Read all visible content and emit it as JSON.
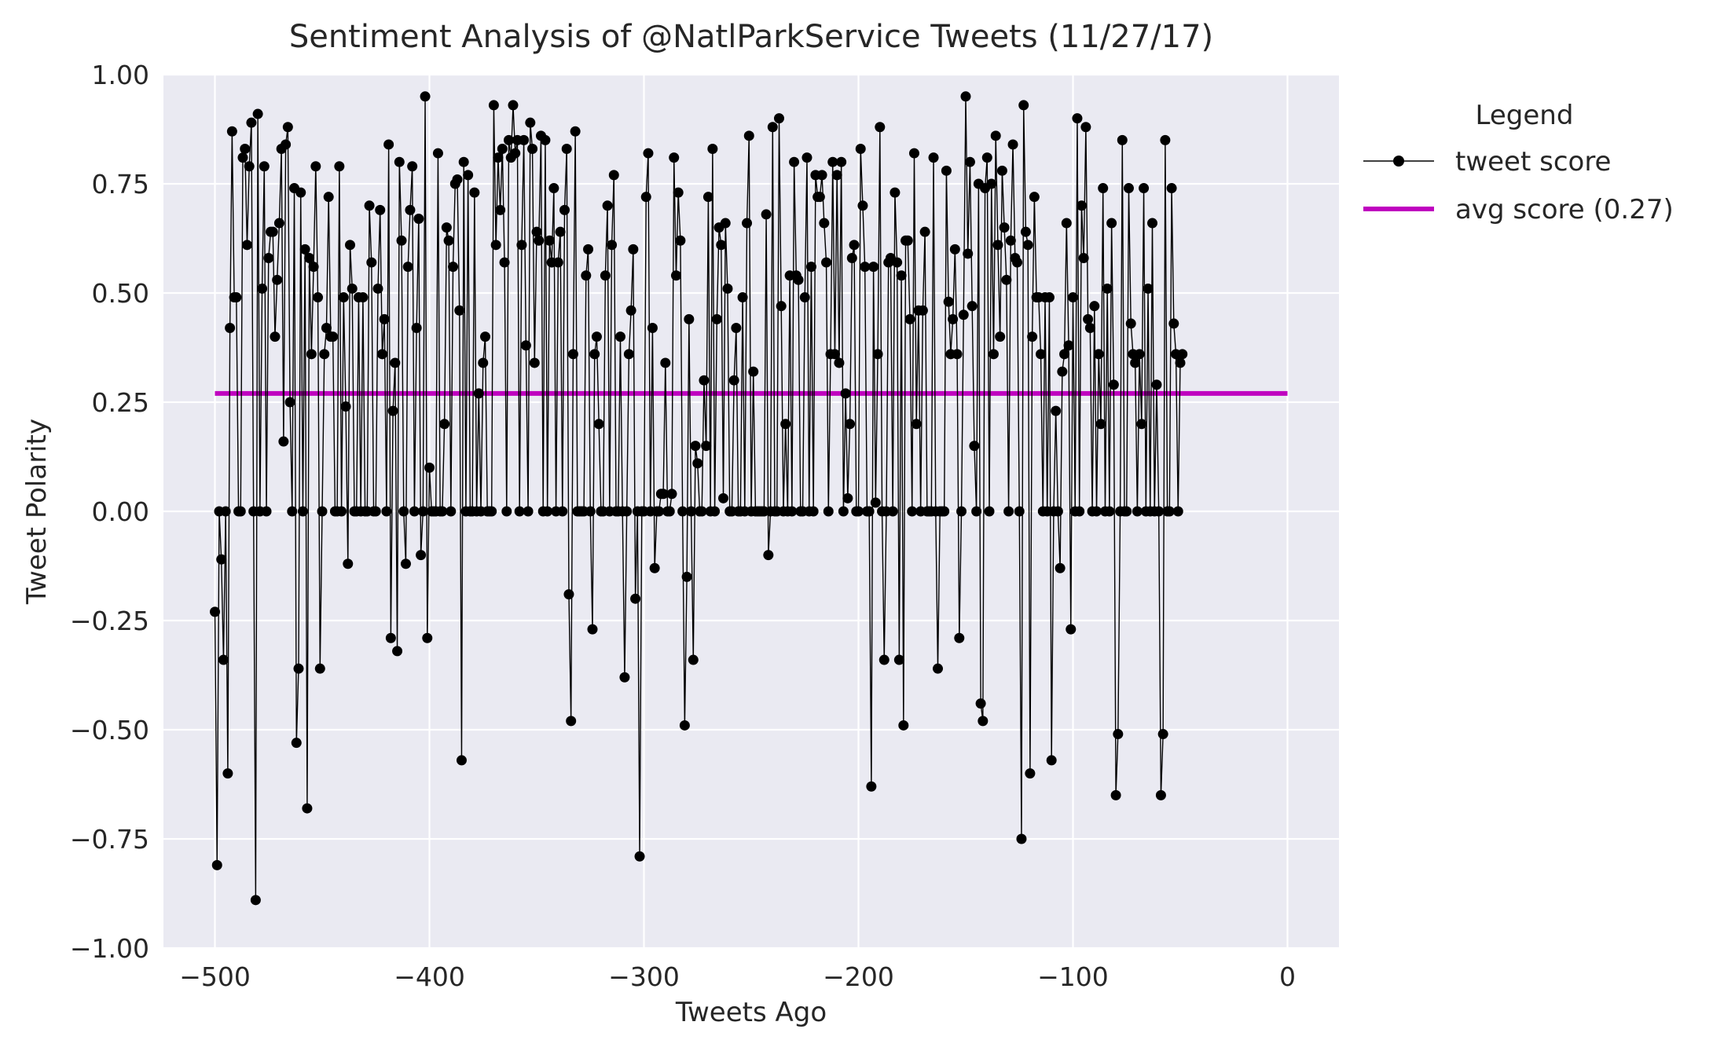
{
  "chart_data": {
    "type": "line",
    "title": "Sentiment Analysis of @NatlParkService Tweets (11/27/17)",
    "xlabel": "Tweets Ago",
    "ylabel": "Tweet Polarity",
    "xlim": [
      -524,
      24
    ],
    "ylim": [
      -1.0,
      1.0
    ],
    "xticks": [
      -500,
      -400,
      -300,
      -200,
      -100,
      0
    ],
    "xtick_labels": [
      "−500",
      "−400",
      "−300",
      "−200",
      "−100",
      "0"
    ],
    "yticks": [
      1.0,
      0.75,
      0.5,
      0.25,
      0.0,
      -0.25,
      -0.5,
      -0.75,
      -1.0
    ],
    "ytick_labels": [
      "1.00",
      "0.75",
      "0.50",
      "0.25",
      "0.00",
      "−0.25",
      "−0.50",
      "−0.75",
      "−1.00"
    ],
    "grid": true,
    "background_color": "#eaeaf2",
    "legend": {
      "title": "Legend",
      "placement": "outside-right",
      "entries": [
        "tweet score",
        "avg score (0.27)"
      ]
    },
    "series": [
      {
        "name": "tweet score",
        "color": "#000000",
        "marker": "circle",
        "x_start": -500,
        "x_step": 1,
        "values": [
          -0.23,
          -0.81,
          0,
          -0.11,
          -0.34,
          0,
          -0.6,
          0.42,
          0.87,
          0.49,
          0.49,
          0,
          0,
          0.81,
          0.83,
          0.61,
          0.79,
          0.89,
          0,
          -0.89,
          0.91,
          0,
          0.51,
          0.79,
          0,
          0.58,
          0.64,
          0.64,
          0.4,
          0.53,
          0.66,
          0.83,
          0.16,
          0.84,
          0.88,
          0.25,
          0,
          0.74,
          -0.53,
          -0.36,
          0.73,
          0,
          0.6,
          -0.68,
          0.58,
          0.36,
          0.56,
          0.79,
          0.49,
          -0.36,
          0,
          0.36,
          0.42,
          0.72,
          0.4,
          0.4,
          0,
          0,
          0.79,
          0,
          0.49,
          0.24,
          -0.12,
          0.61,
          0.51,
          0,
          0,
          0.49,
          0,
          0.49,
          0,
          0,
          0.7,
          0.57,
          0,
          0,
          0.51,
          0.69,
          0.36,
          0.44,
          0,
          0.84,
          -0.29,
          0.23,
          0.34,
          -0.32,
          0.8,
          0.62,
          0,
          -0.12,
          0.56,
          0.69,
          0.79,
          0,
          0.42,
          0.67,
          -0.1,
          0,
          0.95,
          -0.29,
          0.1,
          0,
          0,
          0,
          0.82,
          0,
          0,
          0.2,
          0.65,
          0.62,
          0,
          0.56,
          0.75,
          0.76,
          0.46,
          -0.57,
          0.8,
          0,
          0.77,
          0,
          0,
          0.73,
          0,
          0.27,
          0,
          0.34,
          0.4,
          0,
          0,
          0,
          0.93,
          0.61,
          0.81,
          0.69,
          0.83,
          0.57,
          0,
          0.85,
          0.81,
          0.93,
          0.82,
          0.85,
          0,
          0.61,
          0.85,
          0.38,
          0,
          0.89,
          0.83,
          0.34,
          0.64,
          0.62,
          0.86,
          0,
          0.85,
          0,
          0.62,
          0.57,
          0.74,
          0,
          0.57,
          0.64,
          0,
          0.69,
          0.83,
          -0.19,
          -0.48,
          0.36,
          0.87,
          0,
          0,
          0,
          0,
          0.54,
          0.6,
          0,
          -0.27,
          0.36,
          0.4,
          0.2,
          0,
          0,
          0.54,
          0.7,
          0,
          0.61,
          0.77,
          0,
          0,
          0.4,
          0,
          -0.38,
          0,
          0.36,
          0.46,
          0.6,
          -0.2,
          0,
          -0.79,
          0,
          0,
          0.72,
          0.82,
          0,
          0.42,
          -0.13,
          0,
          0,
          0.04,
          0.04,
          0.34,
          0,
          0,
          0.04,
          0.81,
          0.54,
          0.73,
          0.62,
          0,
          -0.49,
          -0.15,
          0.44,
          0,
          -0.34,
          0.15,
          0.11,
          0,
          0,
          0.3,
          0.15,
          0.72,
          0,
          0.83,
          0,
          0.44,
          0.65,
          0.61,
          0.03,
          0.66,
          0.51,
          0,
          0,
          0.3,
          0.42,
          0,
          0,
          0.49,
          0,
          0.66,
          0.86,
          0,
          0.32,
          0,
          0,
          0,
          0,
          0,
          0.68,
          -0.1,
          0,
          0.88,
          0,
          0,
          0.9,
          0.47,
          0,
          0.2,
          0,
          0.54,
          0,
          0.8,
          0.54,
          0.53,
          0,
          0,
          0.49,
          0.81,
          0,
          0.56,
          0,
          0.77,
          0.72,
          0.72,
          0.77,
          0.66,
          0.57,
          0,
          0.36,
          0.8,
          0.36,
          0.77,
          0.34,
          0.8,
          0,
          0.27,
          0.03,
          0.2,
          0.58,
          0.61,
          0,
          0,
          0.83,
          0.7,
          0.56,
          0,
          0,
          -0.63,
          0.56,
          0.02,
          0.36,
          0.88,
          0,
          -0.34,
          0,
          0.57,
          0.58,
          0,
          0.73,
          0.57,
          -0.34,
          0.54,
          -0.49,
          0.62,
          0.62,
          0.44,
          0,
          0.82,
          0.2,
          0.46,
          0,
          0.46,
          0.64,
          0,
          0,
          0,
          0.81,
          0,
          -0.36,
          0,
          0,
          0,
          0.78,
          0.48,
          0.36,
          0.44,
          0.6,
          0.36,
          -0.29,
          0,
          0.45,
          0.95,
          0.59,
          0.8,
          0.47,
          0.15,
          0,
          0.75,
          -0.44,
          -0.48,
          0.74,
          0.81,
          0,
          0.75,
          0.36,
          0.86,
          0.61,
          0.4,
          0.78,
          0.65,
          0.53,
          0,
          0.62,
          0.84,
          0.58,
          0.57,
          0,
          -0.75,
          0.93,
          0.64,
          0.61,
          -0.6,
          0.4,
          0.72,
          0.49,
          0.49,
          0.36,
          0,
          0.49,
          0,
          0.49,
          -0.57,
          0,
          0.23,
          0,
          -0.13,
          0.32,
          0.36,
          0.66,
          0.38,
          -0.27,
          0.49,
          0,
          0.9,
          0,
          0.7,
          0.58,
          0.88,
          0.44,
          0.42,
          0,
          0.47,
          0,
          0.36,
          0.2,
          0.74,
          0,
          0.51,
          0,
          0.66,
          0.29,
          -0.65,
          -0.51,
          0,
          0.85,
          0,
          0,
          0.74,
          0.43,
          0.36,
          0.34,
          0,
          0.36,
          0.2,
          0.74,
          0,
          0.51,
          0,
          0.66,
          0,
          0.29,
          0,
          -0.65,
          -0.51,
          0.85,
          0,
          0,
          0.74,
          0.43,
          0.36,
          0,
          0.34,
          0.36
        ]
      },
      {
        "name": "avg score (0.27)",
        "color": "#bf00bf",
        "x": [
          -500,
          0
        ],
        "values": [
          0.27,
          0.27
        ]
      }
    ]
  }
}
